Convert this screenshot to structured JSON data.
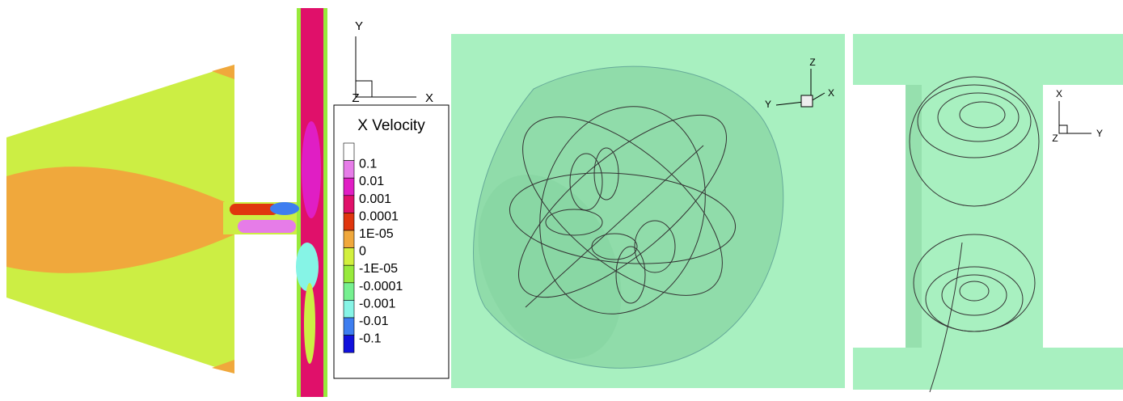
{
  "left_panel": {
    "axis_labels": {
      "y": "Y",
      "z": "Z",
      "x": "X"
    },
    "legend": {
      "title": "X Velocity",
      "labels": [
        "0.1",
        "0.01",
        "0.001",
        "0.0001",
        "1E-05",
        "0",
        "-1E-05",
        "-0.0001",
        "-0.001",
        "-0.01",
        "-0.1"
      ],
      "colors": [
        "#ffffff",
        "#e67ce8",
        "#e01ec4",
        "#e0106a",
        "#e0360e",
        "#f0a83c",
        "#d2f03e",
        "#98ea3c",
        "#76f090",
        "#86f4e6",
        "#3e7ef0",
        "#1010dc"
      ]
    }
  },
  "middle_panel": {
    "axis_labels": {
      "z": "Z",
      "y": "Y",
      "x": "X"
    }
  },
  "right_panel": {
    "axis_labels": {
      "x": "X",
      "z": "Z",
      "y": "Y"
    }
  }
}
